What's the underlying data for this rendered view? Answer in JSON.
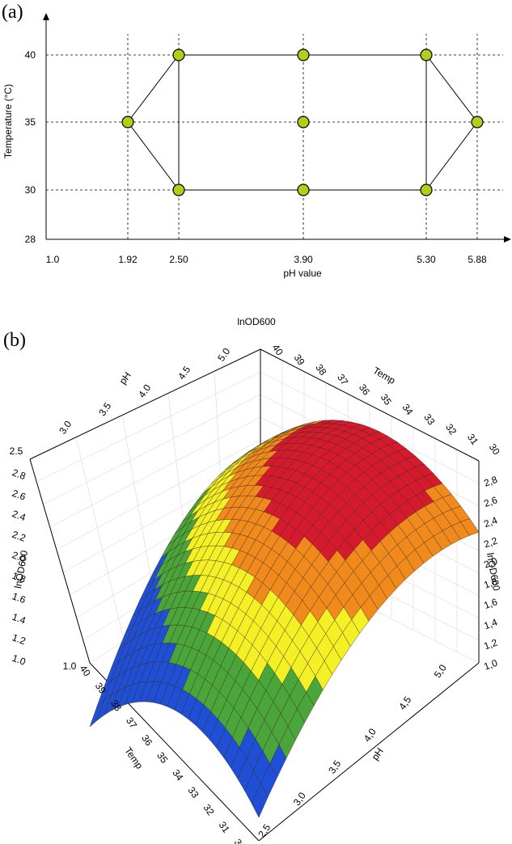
{
  "panel_a_label": "(a)",
  "panel_b_label": "(b)",
  "chart_data": [
    {
      "type": "scatter",
      "xlabel": "pH value",
      "ylabel": "Temperature (°C)",
      "x_ticks": [
        "1.0",
        "1.92",
        "2.50",
        "3.90",
        "5.30",
        "5.88"
      ],
      "y_ticks": [
        "28",
        "30",
        "35",
        "40"
      ],
      "xlim": [
        1.0,
        6.2
      ],
      "ylim": [
        28,
        41
      ],
      "points": [
        {
          "x": 1.92,
          "y": 35
        },
        {
          "x": 2.5,
          "y": 40
        },
        {
          "x": 2.5,
          "y": 30
        },
        {
          "x": 3.9,
          "y": 40
        },
        {
          "x": 3.9,
          "y": 35
        },
        {
          "x": 3.9,
          "y": 30
        },
        {
          "x": 5.3,
          "y": 40
        },
        {
          "x": 5.3,
          "y": 30
        },
        {
          "x": 5.88,
          "y": 35
        }
      ],
      "grid": "dashed lines at design levels",
      "marker_color": "#b5cc18"
    },
    {
      "type": "surface",
      "title": "lnOD600",
      "zlabel": "lnOD600",
      "temp_label": "Temp",
      "ph_label": "pH",
      "temp_range": [
        30,
        40
      ],
      "ph_range": [
        2.5,
        5.0
      ],
      "z_range": [
        1.0,
        2.8
      ],
      "temp_ticks": [
        "30",
        "31",
        "32",
        "33",
        "34",
        "35",
        "36",
        "37",
        "38",
        "39",
        "40"
      ],
      "ph_ticks": [
        "2.5",
        "3.0",
        "3.5",
        "4.0",
        "4.5",
        "5.0"
      ],
      "z_ticks_left": [
        "1.0",
        "1.2",
        "1.4",
        "1.6",
        "1.8",
        "2.0",
        "2.2",
        "2.4",
        "2.6",
        "2.8"
      ],
      "z_ticks_right": [
        "1,0",
        "1,2",
        "1,4",
        "1,6",
        "1,8",
        "2,0",
        "2,2",
        "2,4",
        "2,6",
        "2,8"
      ],
      "z_ticks_left_top": "2.5",
      "bottom_ph_ticks": [
        "2,5",
        "3,0",
        "3,5",
        "4,0",
        "4,5",
        "5,0"
      ],
      "top_ph_ticks": [
        "3.0",
        "3.5",
        "4.0",
        "4.5",
        "5.0"
      ],
      "colors": [
        "#1e4fd6",
        "#4aa63a",
        "#f3f026",
        "#f08a1c",
        "#d61a2e"
      ]
    }
  ]
}
